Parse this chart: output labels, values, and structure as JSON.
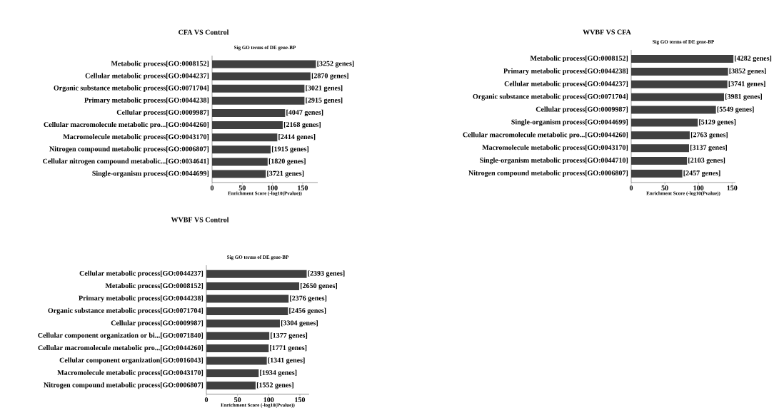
{
  "chart_data": [
    {
      "type": "bar",
      "orientation": "horizontal",
      "title": "CFA  VS  Control",
      "subtitle": "Sig GO terms of DE gene-BP",
      "xlabel": "Enrichment Score (-log10(Pvalue))",
      "color": "#404040",
      "xlim": [
        0,
        175
      ],
      "xticks": [
        0,
        50,
        100,
        150
      ],
      "categories": [
        "Metabolic process[GO:0008152]",
        "Cellular metabolic process[GO:0044237]",
        "Organic substance metabolic process[GO:0071704]",
        "Primary metabolic process[GO:0044238]",
        "Cellular process[GO:0009987]",
        "Cellular macromolecule metabolic pro...[GO:0044260]",
        "Macromolecule metabolic process[GO:0043170]",
        "Nitrogen compound metabolic process[GO:0006807]",
        "Cellular nitrogen compound metabolic...[GO:0034641]",
        "Single-organism process[GO:0044699]"
      ],
      "values": [
        172,
        163,
        153,
        153,
        121,
        117,
        108,
        97,
        92,
        89
      ],
      "annotations": [
        {
          "text": "[3252 genes]",
          "x": 172,
          "y": "Metabolic process[GO:0008152]"
        },
        {
          "text": "[2870 genes]",
          "x": 163,
          "y": "Cellular metabolic process[GO:0044237]"
        },
        {
          "text": "[3021 genes]",
          "x": 153,
          "y": "Organic substance metabolic process[GO:0071704]"
        },
        {
          "text": "[2915 genes]",
          "x": 153,
          "y": "Primary metabolic process[GO:0044238]"
        },
        {
          "text": "[4047 genes]",
          "x": 121,
          "y": "Cellular process[GO:0009987]"
        },
        {
          "text": "[2168 genes]",
          "x": 117,
          "y": "Cellular macromolecule metabolic pro...[GO:0044260]"
        },
        {
          "text": "[2414 genes]",
          "x": 108,
          "y": "Macromolecule metabolic process[GO:0043170]"
        },
        {
          "text": "[1915 genes]",
          "x": 97,
          "y": "Nitrogen compound metabolic process[GO:0006807]"
        },
        {
          "text": "[1820 genes]",
          "x": 92,
          "y": "Cellular nitrogen compound metabolic...[GO:0034641]"
        },
        {
          "text": "[3721 genes]",
          "x": 89,
          "y": "Single-organism process[GO:0044699]"
        }
      ]
    },
    {
      "type": "bar",
      "orientation": "horizontal",
      "title": "WVBF  VS  CFA",
      "subtitle": "Sig GO terms of DE gene-BP",
      "xlabel": "Enrichment Score (-log10(Pvalue))",
      "color": "#404040",
      "xlim": [
        0,
        155
      ],
      "xticks": [
        0,
        50,
        100,
        150
      ],
      "categories": [
        "Metabolic process[GO:0008152]",
        "Primary metabolic process[GO:0044238]",
        "Cellular metabolic process[GO:0044237]",
        "Organic substance metabolic process[GO:0071704]",
        "Cellular process[GO:0009987]",
        "Single-organism process[GO:0044699]",
        "Cellular macromolecule metabolic pro...[GO:0044260]",
        "Macromolecule metabolic process[GO:0043170]",
        "Single-organism metabolic process[GO:0044710]",
        "Nitrogen compound metabolic process[GO:0006807]"
      ],
      "values": [
        152,
        144,
        143,
        138,
        126,
        99,
        87,
        86,
        83,
        76
      ],
      "annotations": [
        {
          "text": "[4282 genes]",
          "x": 152,
          "y": "Metabolic process[GO:0008152]"
        },
        {
          "text": "[3852 genes]",
          "x": 144,
          "y": "Primary metabolic process[GO:0044238]"
        },
        {
          "text": "[3741 genes]",
          "x": 143,
          "y": "Cellular metabolic process[GO:0044237]"
        },
        {
          "text": "[3981 genes]",
          "x": 138,
          "y": "Organic substance metabolic process[GO:0071704]"
        },
        {
          "text": "[5549 genes]",
          "x": 126,
          "y": "Cellular process[GO:0009987]"
        },
        {
          "text": "[5129 genes]",
          "x": 99,
          "y": "Single-organism process[GO:0044699]"
        },
        {
          "text": "[2763 genes]",
          "x": 87,
          "y": "Cellular macromolecule metabolic pro...[GO:0044260]"
        },
        {
          "text": "[3137 genes]",
          "x": 86,
          "y": "Macromolecule metabolic process[GO:0043170]"
        },
        {
          "text": "[2103 genes]",
          "x": 83,
          "y": "Single-organism metabolic process[GO:0044710]"
        },
        {
          "text": "[2457 genes]",
          "x": 76,
          "y": "Nitrogen compound metabolic process[GO:0006807]"
        }
      ]
    },
    {
      "type": "bar",
      "orientation": "horizontal",
      "title": "WVBF  VS  Control",
      "subtitle": "Sig GO terms of DE gene-BP",
      "xlabel": "Enrichment Score (-log10(Pvalue))",
      "color": "#404040",
      "xlim": [
        0,
        165
      ],
      "xticks": [
        0,
        50,
        100,
        150
      ],
      "categories": [
        "Cellular metabolic process[GO:0044237]",
        "Metabolic process[GO:0008152]",
        "Primary metabolic process[GO:0044238]",
        "Organic substance metabolic process[GO:0071704]",
        "Cellular process[GO:0009987]",
        "Cellular component organization or bi...[GO:0071840]",
        "Cellular macromolecule metabolic pro...[GO:0044260]",
        "Cellular component organization[GO:0016043]",
        "Macromolecule metabolic process[GO:0043170]",
        "Nitrogen compound metabolic process[GO:0006807]"
      ],
      "values": [
        161,
        149,
        132,
        131,
        118,
        101,
        100,
        97,
        84,
        79
      ],
      "annotations": [
        {
          "text": "[2393 genes]",
          "x": 161,
          "y": "Cellular metabolic process[GO:0044237]"
        },
        {
          "text": "[2650 genes]",
          "x": 149,
          "y": "Metabolic process[GO:0008152]"
        },
        {
          "text": "[2376 genes]",
          "x": 132,
          "y": "Primary metabolic process[GO:0044238]"
        },
        {
          "text": "[2456 genes]",
          "x": 131,
          "y": "Organic substance metabolic process[GO:0071704]"
        },
        {
          "text": "[3304 genes]",
          "x": 118,
          "y": "Cellular process[GO:0009987]"
        },
        {
          "text": "[1377 genes]",
          "x": 101,
          "y": "Cellular component organization or bi...[GO:0071840]"
        },
        {
          "text": "[1771 genes]",
          "x": 100,
          "y": "Cellular macromolecule metabolic pro...[GO:0044260]"
        },
        {
          "text": "[1341 genes]",
          "x": 97,
          "y": "Cellular component organization[GO:0016043]"
        },
        {
          "text": "[1934 genes]",
          "x": 84,
          "y": "Macromolecule metabolic process[GO:0043170]"
        },
        {
          "text": "[1552 genes]",
          "x": 79,
          "y": "Nitrogen compound metabolic process[GO:0006807]"
        }
      ]
    }
  ]
}
